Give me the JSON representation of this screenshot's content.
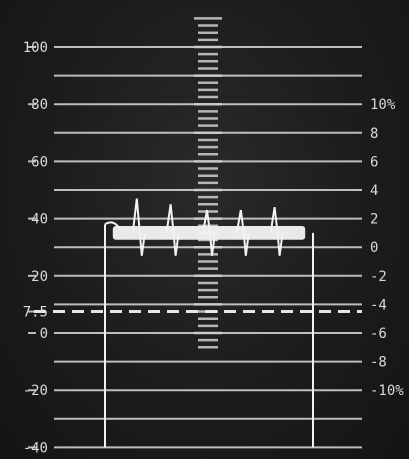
{
  "chart_data": {
    "type": "line",
    "title": "",
    "xlabel": "",
    "ylabel": "",
    "ylim": [
      -40,
      110
    ],
    "grid": true,
    "left_axis": {
      "ticks": [
        "100",
        "80",
        "60",
        "40",
        "20",
        "7.5",
        "0",
        "-20",
        "-40"
      ],
      "values": [
        100,
        80,
        60,
        40,
        20,
        7.5,
        0,
        -20,
        -40
      ]
    },
    "right_axis": {
      "ticks": [
        "10%",
        "8",
        "6",
        "4",
        "2",
        "0",
        "-2",
        "-4",
        "-6",
        "-8",
        "-10%"
      ],
      "values": [
        10,
        8,
        6,
        4,
        2,
        0,
        -2,
        -4,
        -6,
        -8,
        -10
      ],
      "left_scale_equivalent": [
        80,
        70,
        60,
        50,
        40,
        30,
        20,
        10,
        0,
        -10,
        -20
      ]
    },
    "reference_line": {
      "value": 7.5,
      "style": "dashed"
    },
    "series": [
      {
        "x": [
          0.0,
          0.6,
          2.5,
          3.5,
          4.5,
          5.5,
          6.5,
          7.4,
          8.0
        ],
        "values": [
          0,
          38,
          35,
          35,
          35,
          35,
          35,
          35,
          0
        ],
        "spike_values": [
          47,
          45,
          43,
          43,
          44
        ]
      }
    ]
  }
}
